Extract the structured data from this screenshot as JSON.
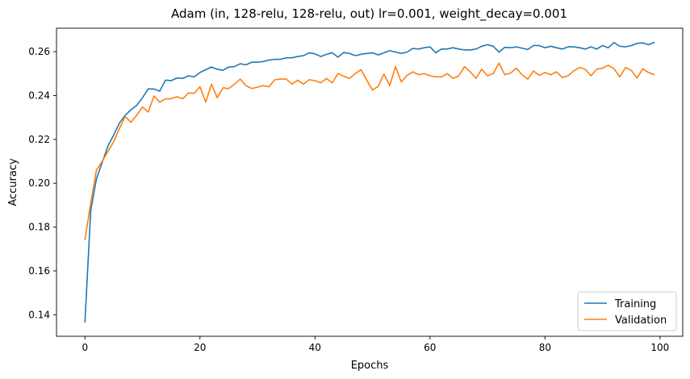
{
  "chart_data": {
    "type": "line",
    "title": "Adam (in, 128-relu, 128-relu, out) lr=0.001, weight_decay=0.001",
    "xlabel": "Epochs",
    "ylabel": "Accuracy",
    "xlim": [
      -4.95,
      103.95
    ],
    "ylim": [
      0.1302,
      0.2707
    ],
    "x_ticks": [
      0,
      20,
      40,
      60,
      80,
      100
    ],
    "y_ticks": [
      0.14,
      0.16,
      0.18,
      0.2,
      0.22,
      0.24,
      0.26
    ],
    "x_tick_labels": [
      "0",
      "20",
      "40",
      "60",
      "80",
      "100"
    ],
    "y_tick_labels": [
      "0.14",
      "0.16",
      "0.18",
      "0.20",
      "0.22",
      "0.24",
      "0.26"
    ],
    "grid": false,
    "legend_position": "lower right",
    "series": [
      {
        "name": "Training",
        "color": "#1f77b4",
        "values": [
          0.1367,
          0.1875,
          0.202,
          0.2095,
          0.217,
          0.222,
          0.2275,
          0.231,
          0.2335,
          0.2355,
          0.239,
          0.243,
          0.243,
          0.242,
          0.247,
          0.2468,
          0.248,
          0.2478,
          0.249,
          0.2485,
          0.2505,
          0.2518,
          0.253,
          0.252,
          0.2515,
          0.253,
          0.2532,
          0.2545,
          0.254,
          0.2552,
          0.2552,
          0.2555,
          0.2562,
          0.2565,
          0.2565,
          0.2572,
          0.2572,
          0.2578,
          0.2582,
          0.2595,
          0.259,
          0.2578,
          0.2588,
          0.2595,
          0.2575,
          0.2596,
          0.2592,
          0.2582,
          0.2588,
          0.2592,
          0.2595,
          0.2585,
          0.2595,
          0.2605,
          0.2598,
          0.2592,
          0.2598,
          0.2615,
          0.2612,
          0.2618,
          0.2622,
          0.2595,
          0.2612,
          0.2612,
          0.2618,
          0.2612,
          0.2608,
          0.2608,
          0.2612,
          0.2625,
          0.2632,
          0.2625,
          0.2598,
          0.262,
          0.2618,
          0.2622,
          0.2616,
          0.261,
          0.2628,
          0.2628,
          0.2618,
          0.2625,
          0.2618,
          0.2612,
          0.2622,
          0.2622,
          0.2618,
          0.2612,
          0.2622,
          0.2612,
          0.2628,
          0.2618,
          0.2642,
          0.2625,
          0.2622,
          0.2628,
          0.2638,
          0.264,
          0.2632,
          0.2642
        ]
      },
      {
        "name": "Validation",
        "color": "#ff7f0e",
        "values": [
          0.1742,
          0.191,
          0.206,
          0.21,
          0.2145,
          0.219,
          0.225,
          0.2305,
          0.2278,
          0.231,
          0.2348,
          0.2325,
          0.2398,
          0.237,
          0.2385,
          0.2385,
          0.2395,
          0.2385,
          0.2412,
          0.241,
          0.244,
          0.237,
          0.2452,
          0.239,
          0.2435,
          0.2432,
          0.2452,
          0.2475,
          0.2445,
          0.2432,
          0.2438,
          0.2445,
          0.244,
          0.2472,
          0.2475,
          0.2475,
          0.2452,
          0.247,
          0.2452,
          0.2472,
          0.2468,
          0.2458,
          0.2478,
          0.2458,
          0.25,
          0.2488,
          0.2478,
          0.25,
          0.2518,
          0.247,
          0.2425,
          0.2442,
          0.2498,
          0.2445,
          0.2532,
          0.2462,
          0.2492,
          0.2508,
          0.2495,
          0.25,
          0.249,
          0.2485,
          0.2485,
          0.25,
          0.2478,
          0.249,
          0.2532,
          0.2508,
          0.2478,
          0.252,
          0.249,
          0.25,
          0.2548,
          0.2495,
          0.2502,
          0.2525,
          0.2495,
          0.2475,
          0.2512,
          0.2492,
          0.2505,
          0.2495,
          0.2508,
          0.2482,
          0.249,
          0.2512,
          0.2528,
          0.252,
          0.249,
          0.252,
          0.2525,
          0.2538,
          0.2522,
          0.2485,
          0.2528,
          0.2515,
          0.248,
          0.2522,
          0.2505,
          0.2495
        ]
      }
    ]
  }
}
